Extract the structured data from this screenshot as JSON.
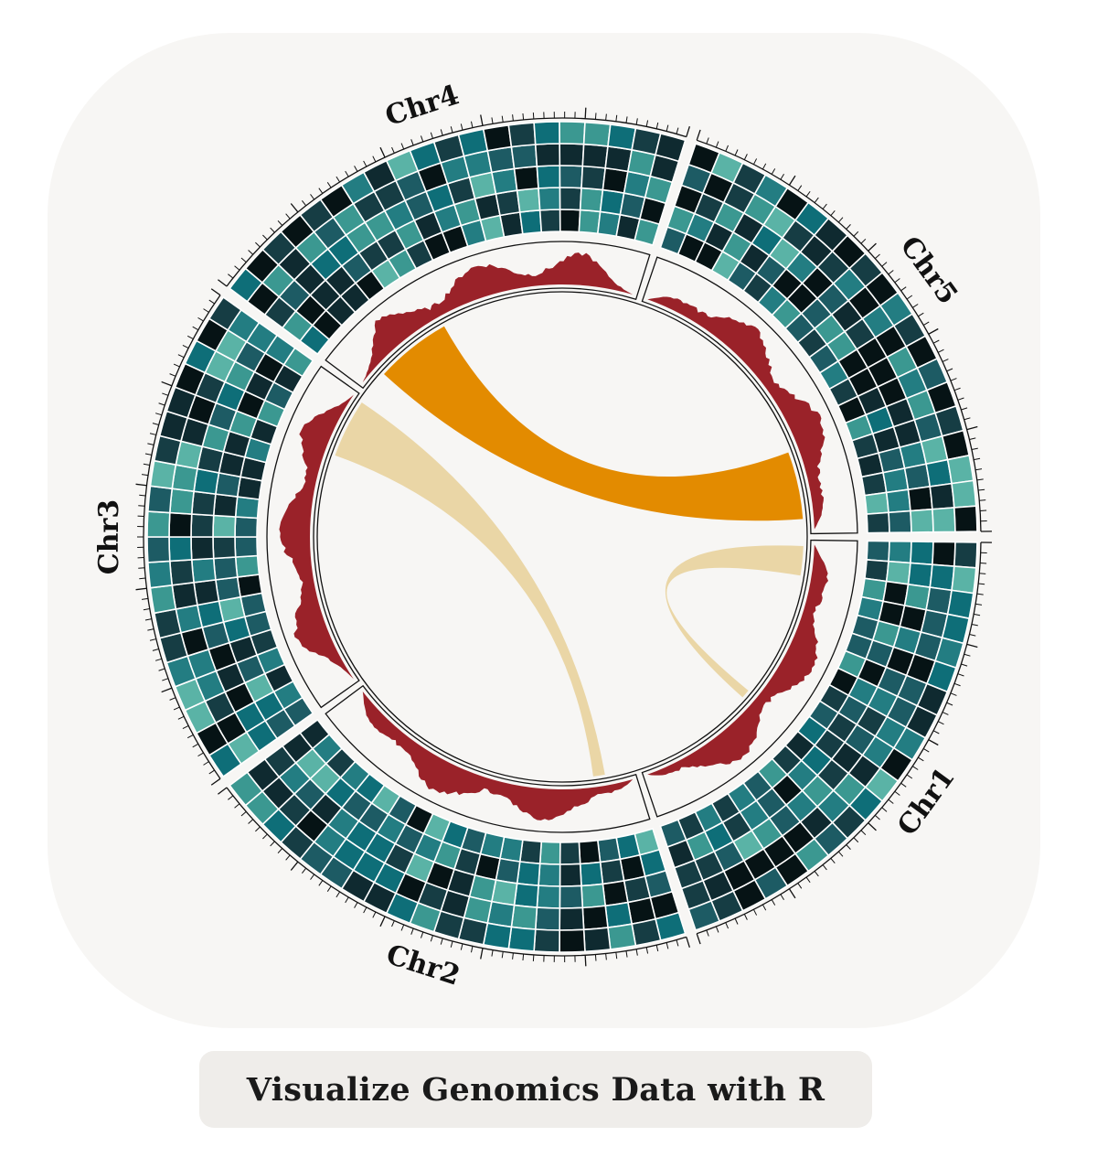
{
  "caption": "Visualize Genomics Data with R",
  "colors": {
    "heatmap_scale": [
      "#061315",
      "#0f2a30",
      "#163d44",
      "#1d5b64",
      "#0e6e78",
      "#237d82",
      "#3b9891",
      "#5ab3a6"
    ],
    "area_track": "#9a2229",
    "link_major": "#e38b00",
    "link_minor": "#ead6a6",
    "background": "#f7f6f4"
  },
  "chart_data": {
    "type": "circos",
    "sectors": [
      {
        "name": "Chr1",
        "label": "Chr1"
      },
      {
        "name": "Chr2",
        "label": "Chr2"
      },
      {
        "name": "Chr3",
        "label": "Chr3"
      },
      {
        "name": "Chr4",
        "label": "Chr4"
      },
      {
        "name": "Chr5",
        "label": "Chr5"
      }
    ],
    "tracks": [
      "ticks",
      "heatmap",
      "area",
      "links"
    ],
    "heatmap_rows": 5,
    "heatmap_columns_per_sector": 20,
    "links": [
      {
        "from": "Chr4",
        "to": "Chr5",
        "weight": "major"
      },
      {
        "from": "Chr3",
        "to": "Chr2",
        "weight": "minor"
      },
      {
        "from": "Chr1",
        "to": "Chr1",
        "weight": "minor"
      }
    ]
  }
}
